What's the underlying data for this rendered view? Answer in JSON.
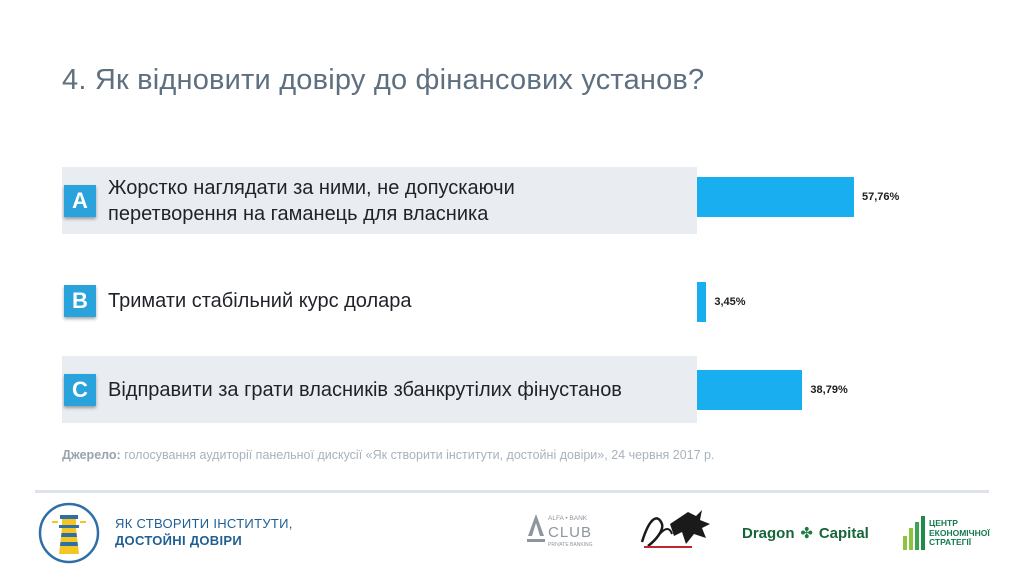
{
  "title": "4. Як відновити довіру до фінансових установ?",
  "chart_data": {
    "type": "bar",
    "categories": [
      "A",
      "B",
      "C"
    ],
    "answers": [
      "Жорстко наглядати за ними, не допускаючи перетворення на гаманець для власника",
      "Тримати стабільний курс долара",
      "Відправити за грати власників збанкрутілих фінустанов"
    ],
    "values": [
      57.76,
      3.45,
      38.79
    ],
    "value_labels": [
      "57,76%",
      "3,45%",
      "38,79%"
    ],
    "xlim": [
      0,
      100
    ],
    "grid": false
  },
  "answers_display": {
    "a_line1": "Жорстко наглядати за ними, не допускаючи",
    "a_line2": "перетворення на гаманець для власника"
  },
  "source": {
    "label": "Джерело:",
    "text": " голосування аудиторії панельної дискусії «Як створити інститути, достойні довіри», 24 червня 2017 р."
  },
  "footer": {
    "brand_line1": "ЯК СТВОРИТИ ІНСТИТУТИ,",
    "brand_line2": "ДОСТОЙНІ ДОВІРИ",
    "alfa_top": "ALFA • BANK",
    "alfa_club": "CLUB",
    "alfa_bottom": "PRIVATE BANKING",
    "dragon_left": "Dragon",
    "dragon_right": "Capital",
    "ces_line1": "ЦЕНТР",
    "ces_line2": "ЕКОНОМІЧНОЇ",
    "ces_line3": "СТРАТЕГІЇ"
  },
  "colors": {
    "accent": "#2aa3dd",
    "bar": "#18aef0",
    "title": "#5e6f80",
    "row_shade": "#e9edf1",
    "footer_brand": "#1f5f93"
  },
  "icons": [
    "lighthouse-logo-icon",
    "alfa-bank-club-logo-icon",
    "jazz-logo-icon",
    "dragon-icon",
    "ces-bars-icon"
  ]
}
